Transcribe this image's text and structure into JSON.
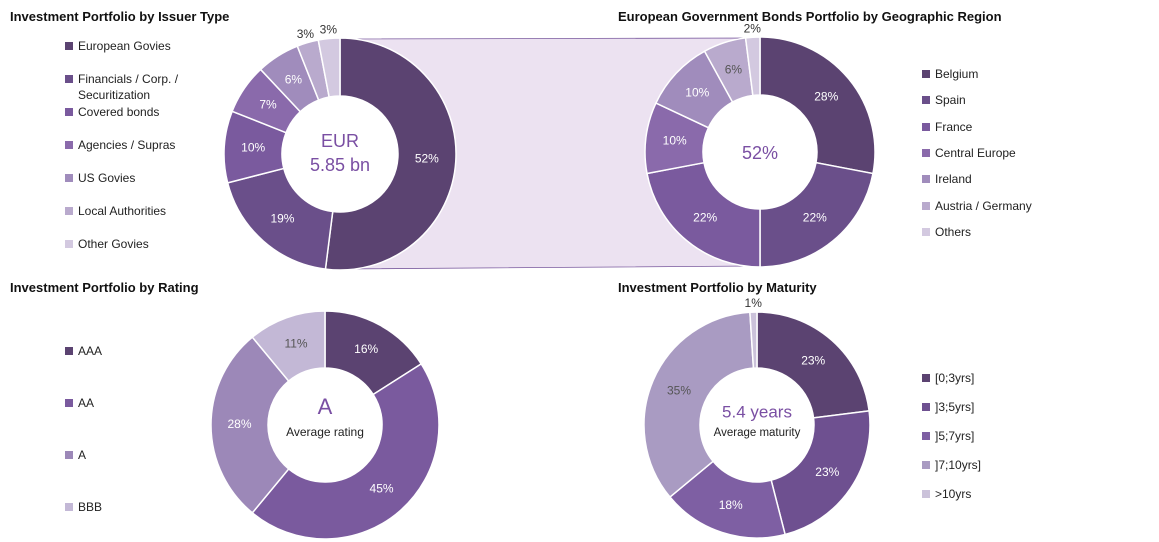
{
  "chart_data": [
    {
      "type": "pie",
      "title": "Investment Portfolio by Issuer Type",
      "categories": [
        "European Govies",
        "Financials / Corp. / Securitization",
        "Covered bonds",
        "Agencies / Supras",
        "US Govies",
        "Local Authorities",
        "Other Govies"
      ],
      "values": [
        52,
        19,
        10,
        7,
        6,
        3,
        3
      ],
      "value_labels": [
        "52%",
        "19%",
        "10%",
        "7%",
        "6%",
        "3%",
        "3%"
      ],
      "colors": [
        "#5b4371",
        "#6a4f8a",
        "#7a5a9e",
        "#8a6aab",
        "#a08cbc",
        "#b9aacd",
        "#d3c9e0"
      ],
      "center_labels": [
        "EUR",
        "5.85 bn"
      ]
    },
    {
      "type": "pie",
      "title": "European Government Bonds Portfolio by Geographic Region",
      "categories": [
        "Belgium",
        "Spain",
        "France",
        "Central Europe",
        "Ireland",
        "Austria / Germany",
        "Others"
      ],
      "values": [
        28,
        22,
        22,
        10,
        10,
        6,
        2
      ],
      "value_labels": [
        "28%",
        "22%",
        "22%",
        "10%",
        "10%",
        "6%",
        "2%"
      ],
      "colors": [
        "#5b4371",
        "#6a4f8a",
        "#7a5a9e",
        "#8a6aab",
        "#a08cbc",
        "#b9aacd",
        "#d3c9e0"
      ],
      "center_labels": [
        "52%"
      ]
    },
    {
      "type": "pie",
      "title": "Investment Portfolio by Rating",
      "categories": [
        "AAA",
        "AA",
        "A",
        "BBB"
      ],
      "values": [
        16,
        45,
        28,
        11
      ],
      "value_labels": [
        "16%",
        "45%",
        "28%",
        "11%"
      ],
      "colors": [
        "#5b4371",
        "#7a5a9e",
        "#9c88b8",
        "#c3b8d6"
      ],
      "center_labels": [
        "A",
        "Average rating"
      ]
    },
    {
      "type": "pie",
      "title": "Investment Portfolio by Maturity",
      "categories": [
        "[0;3yrs]",
        "]3;5yrs]",
        "]5;7yrs]",
        "]7;10yrs]",
        ">10yrs"
      ],
      "values": [
        23,
        23,
        18,
        35,
        1
      ],
      "value_labels": [
        "23%",
        "23%",
        "18%",
        "35%",
        "1%"
      ],
      "colors": [
        "#5b4371",
        "#6e5090",
        "#7e5fa3",
        "#a99bc2",
        "#cbc2da"
      ],
      "center_labels": [
        "5.4 years",
        "Average maturity"
      ]
    }
  ]
}
